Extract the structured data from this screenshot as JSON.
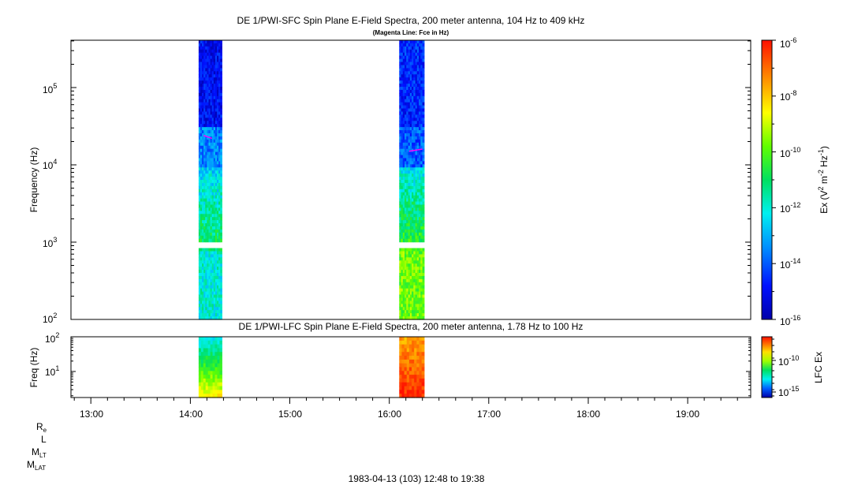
{
  "chart_data": [
    {
      "type": "heatmap",
      "title": "DE 1/PWI-SFC  Spin Plane E-Field Spectra, 200 meter antenna, 104 Hz to 409 kHz",
      "subtitle": "(Magenta Line: Fce in Hz)",
      "ylabel": "Frequency (Hz)",
      "yscale": "log",
      "ylim": [
        100,
        409000
      ],
      "xlim": [
        "12:48",
        "19:38"
      ],
      "ytick_labels": [
        {
          "base": "10",
          "exp": "2"
        },
        {
          "base": "10",
          "exp": "3"
        },
        {
          "base": "10",
          "exp": "4"
        },
        {
          "base": "10",
          "exp": "5"
        }
      ],
      "colorbar": {
        "label_prefix": "Ex (V",
        "label_sup1": "2",
        "label_mid": " m",
        "label_sup2": "-2",
        "label_mid2": " Hz",
        "label_sup3": "-1",
        "label_suffix": ")",
        "scale": "log",
        "range": [
          1e-16,
          1e-06
        ],
        "tick_labels": [
          {
            "base": "10",
            "exp": "-6"
          },
          {
            "base": "10",
            "exp": "-8"
          },
          {
            "base": "10",
            "exp": "-10"
          },
          {
            "base": "10",
            "exp": "-12"
          },
          {
            "base": "10",
            "exp": "-14"
          },
          {
            "base": "10",
            "exp": "-16"
          }
        ]
      },
      "data_intervals": [
        {
          "start": "14:05",
          "end": "14:19"
        },
        {
          "start": "16:06",
          "end": "16:21"
        }
      ],
      "fce_line_hz": [
        {
          "time": "14:08",
          "hz": 24000
        },
        {
          "time": "14:13",
          "hz": 22000
        },
        {
          "time": "16:12",
          "hz": 15000
        },
        {
          "time": "16:20",
          "hz": 16000
        }
      ]
    },
    {
      "type": "heatmap",
      "title": "DE 1/PWI-LFC  Spin Plane E-Field Spectra, 200 meter antenna, 1.78 Hz to 100 Hz",
      "ylabel": "Freq (Hz)",
      "yscale": "log",
      "ylim": [
        1.78,
        100
      ],
      "ytick_labels": [
        {
          "base": "10",
          "exp": "1"
        },
        {
          "base": "10",
          "exp": "2"
        }
      ],
      "colorbar": {
        "label": "LFC Ex",
        "scale": "log",
        "tick_labels": [
          {
            "base": "10",
            "exp": "-10"
          },
          {
            "base": "10",
            "exp": "-15"
          }
        ]
      },
      "data_intervals": [
        {
          "start": "14:05",
          "end": "14:19"
        },
        {
          "start": "16:06",
          "end": "16:21"
        }
      ]
    }
  ],
  "x_axis": {
    "tick_labels": [
      "13:00",
      "14:00",
      "15:00",
      "16:00",
      "17:00",
      "18:00",
      "19:00"
    ],
    "footer": "1983-04-13 (103) 12:48 to 19:38"
  },
  "ephemeris_labels": [
    {
      "base": "R",
      "sub": "e"
    },
    {
      "base": "L",
      "sub": ""
    },
    {
      "base": "M",
      "sub": "LT"
    },
    {
      "base": "M",
      "sub": "LAT"
    }
  ]
}
